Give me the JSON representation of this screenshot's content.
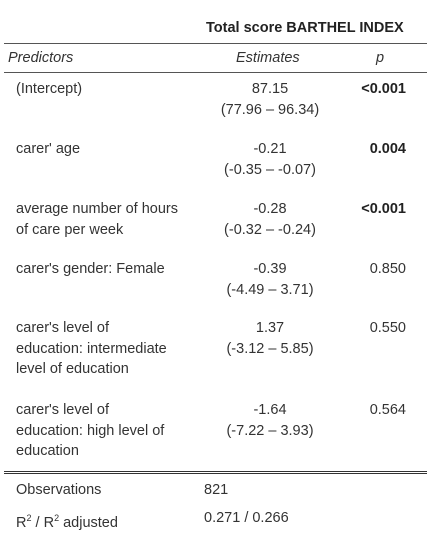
{
  "header": {
    "dependent_variable": "Total score BARTHEL INDEX",
    "col_predictors": "Predictors",
    "col_estimates": "Estimates",
    "col_p": "p"
  },
  "rows": [
    {
      "predictor_lines": [
        "(Intercept)"
      ],
      "estimate": "87.15",
      "ci": "(77.96 – 96.34)",
      "p": "<0.001",
      "p_bold": true
    },
    {
      "predictor_lines": [
        "carer' age"
      ],
      "estimate": "-0.21",
      "ci": "(-0.35 – -0.07)",
      "p": "0.004",
      "p_bold": true
    },
    {
      "predictor_lines": [
        "average number of hours",
        "of care per week"
      ],
      "estimate": "-0.28",
      "ci": "(-0.32 – -0.24)",
      "p": "<0.001",
      "p_bold": true
    },
    {
      "predictor_lines": [
        "carer's gender: Female"
      ],
      "estimate": "-0.39",
      "ci": "(-4.49 – 3.71)",
      "p": "0.850",
      "p_bold": false
    },
    {
      "predictor_lines": [
        "carer's level of",
        "education: intermediate",
        "level of education"
      ],
      "estimate": "1.37",
      "ci": "(-3.12 – 5.85)",
      "p": "0.550",
      "p_bold": false
    },
    {
      "predictor_lines": [
        "carer's level of",
        "education: high level of",
        "education"
      ],
      "estimate": "-1.64",
      "ci": "(-7.22 – 3.93)",
      "p": "0.564",
      "p_bold": false
    }
  ],
  "footer": {
    "observations_label": "Observations",
    "observations_value": "821",
    "r2_label_part1": "R",
    "r2_sup": "2",
    "r2_label_part2": " / R",
    "r2_sup2": "2",
    "r2_label_part3": " adjusted",
    "r2_value": "0.271 / 0.266"
  }
}
